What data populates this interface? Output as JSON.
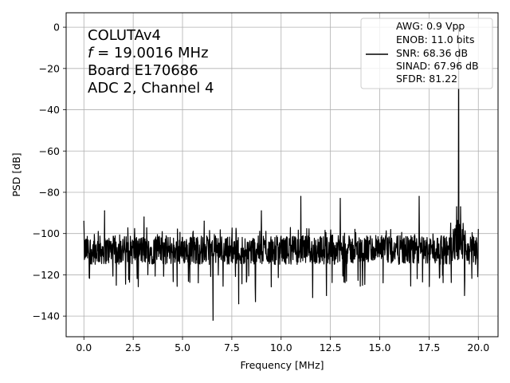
{
  "chart_data": {
    "type": "line",
    "xlabel": "Frequency [MHz]",
    "ylabel": "PSD [dB]",
    "xlim": [
      -0.9,
      21.0
    ],
    "ylim": [
      -150,
      7
    ],
    "xticks": [
      0.0,
      2.5,
      5.0,
      7.5,
      10.0,
      12.5,
      15.0,
      17.5,
      20.0
    ],
    "xtick_labels": [
      "0.0",
      "2.5",
      "5.0",
      "7.5",
      "10.0",
      "12.5",
      "15.0",
      "17.5",
      "20.0"
    ],
    "yticks": [
      0,
      -20,
      -40,
      -60,
      -80,
      -100,
      -120,
      -140
    ],
    "ytick_labels": [
      "0",
      "−20",
      "−40",
      "−60",
      "−80",
      "−100",
      "−120",
      "−140"
    ],
    "grid": true,
    "line_color": "#000000",
    "annotation": {
      "line1": "COLUTAv4",
      "line2_var": "f",
      "line2_rest": " = 19.0016 MHz",
      "line3": "Board E170686",
      "line4": "ADC 2, Channel 4"
    },
    "legend": {
      "placement": "top-right",
      "lines": [
        "AWG: 0.9 Vpp",
        "ENOB: 11.0 bits",
        "SNR: 68.36 dB",
        "SINAD: 67.96 dB",
        "SFDR: 81.22"
      ]
    },
    "noise_floor_db": -108,
    "signal": {
      "x": 19.0016,
      "y": 0
    },
    "spurs": [
      {
        "x": 0.0,
        "y": -94
      },
      {
        "x": 1.05,
        "y": -89
      },
      {
        "x": 3.05,
        "y": -92
      },
      {
        "x": 6.1,
        "y": -94
      },
      {
        "x": 6.55,
        "y": -142
      },
      {
        "x": 7.85,
        "y": -134
      },
      {
        "x": 8.7,
        "y": -133
      },
      {
        "x": 9.0,
        "y": -89
      },
      {
        "x": 11.0,
        "y": -82
      },
      {
        "x": 11.6,
        "y": -131
      },
      {
        "x": 12.3,
        "y": -130
      },
      {
        "x": 13.0,
        "y": -83
      },
      {
        "x": 17.0,
        "y": -82
      },
      {
        "x": 18.6,
        "y": -95
      },
      {
        "x": 18.9,
        "y": -87
      },
      {
        "x": 19.1,
        "y": -87
      },
      {
        "x": 19.3,
        "y": -130
      },
      {
        "x": 20.0,
        "y": -98
      }
    ]
  }
}
